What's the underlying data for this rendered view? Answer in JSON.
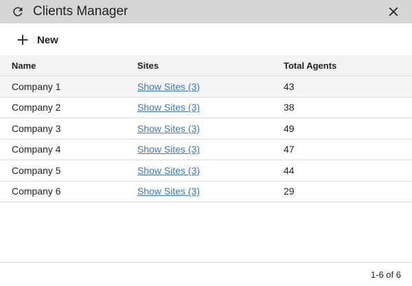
{
  "window": {
    "title": "Clients Manager",
    "refresh_icon": "refresh-icon",
    "close_icon": "close-icon"
  },
  "toolbar": {
    "new_label": "New",
    "new_icon": "plus-icon"
  },
  "table": {
    "columns": [
      "Name",
      "Sites",
      "Total Agents"
    ],
    "rows": [
      {
        "name": "Company 1",
        "sites": "Show Sites (3)",
        "agents": "43"
      },
      {
        "name": "Company 2",
        "sites": "Show Sites (3)",
        "agents": "38"
      },
      {
        "name": "Company 3",
        "sites": "Show Sites (3)",
        "agents": "49"
      },
      {
        "name": "Company 4",
        "sites": "Show Sites (3)",
        "agents": "47"
      },
      {
        "name": "Company 5",
        "sites": "Show Sites (3)",
        "agents": "44"
      },
      {
        "name": "Company 6",
        "sites": "Show Sites (3)",
        "agents": "29"
      }
    ]
  },
  "footer": {
    "pagination": "1-6 of 6"
  },
  "colors": {
    "titlebar": "#d6d6d6",
    "header_row": "#f2f2f2",
    "link": "#3a78b8"
  }
}
